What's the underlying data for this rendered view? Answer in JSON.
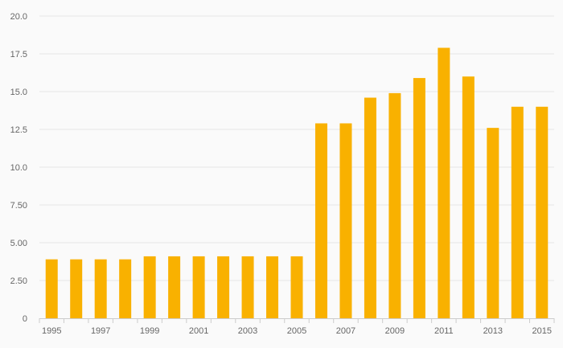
{
  "chart_data": {
    "type": "bar",
    "categories": [
      "1995",
      "1996",
      "1997",
      "1998",
      "1999",
      "2000",
      "2001",
      "2002",
      "2003",
      "2004",
      "2005",
      "2006",
      "2007",
      "2008",
      "2009",
      "2010",
      "2011",
      "2012",
      "2013",
      "2014",
      "2015"
    ],
    "values": [
      3.9,
      3.9,
      3.9,
      3.9,
      4.1,
      4.1,
      4.1,
      4.1,
      4.1,
      4.1,
      4.1,
      12.9,
      12.9,
      14.6,
      14.9,
      15.9,
      17.9,
      16.0,
      12.6,
      14.0,
      14.0
    ],
    "x_tick_labels": [
      "1995",
      "1997",
      "1999",
      "2001",
      "2003",
      "2005",
      "2007",
      "2009",
      "2011",
      "2013",
      "2015"
    ],
    "y_ticks": [
      0,
      2.5,
      5.0,
      7.5,
      10.0,
      12.5,
      15.0,
      17.5,
      20.0
    ],
    "y_tick_labels": [
      "0",
      "2.50",
      "5.00",
      "7.50",
      "10.0",
      "12.5",
      "15.0",
      "17.5",
      "20.0"
    ],
    "ylim": [
      0,
      20
    ],
    "title": "",
    "xlabel": "",
    "ylabel": "",
    "grid": true,
    "legend": "none",
    "bar_color": "#f9b100"
  }
}
